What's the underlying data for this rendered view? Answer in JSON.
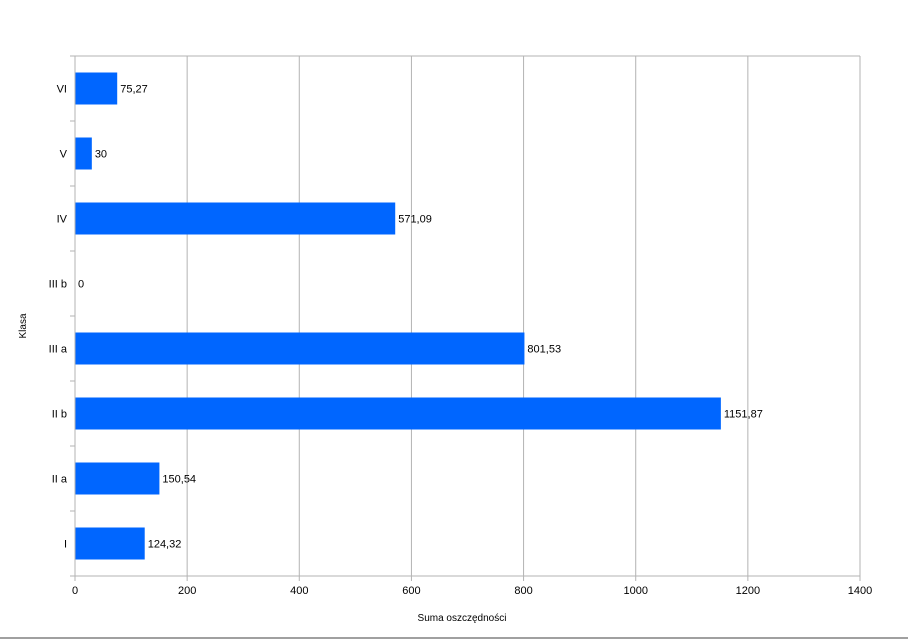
{
  "chart_data": {
    "type": "bar",
    "orientation": "horizontal",
    "categories": [
      "I",
      "II a",
      "II b",
      "III a",
      "III b",
      "IV",
      "V",
      "VI"
    ],
    "values": [
      124.32,
      150.54,
      1151.87,
      801.53,
      0,
      571.09,
      30,
      75.27
    ],
    "data_labels": [
      "124,32",
      "150,54",
      "1151,87",
      "801,53",
      "0",
      "571,09",
      "30",
      "75,27"
    ],
    "xlabel": "Suma oszczędności",
    "ylabel": "Klasa",
    "xlim": [
      0,
      1400
    ],
    "xticks": [
      0,
      200,
      400,
      600,
      800,
      1000,
      1200,
      1400
    ],
    "grid": "vertical",
    "legend": "none",
    "bar_color": "#0066ff"
  }
}
